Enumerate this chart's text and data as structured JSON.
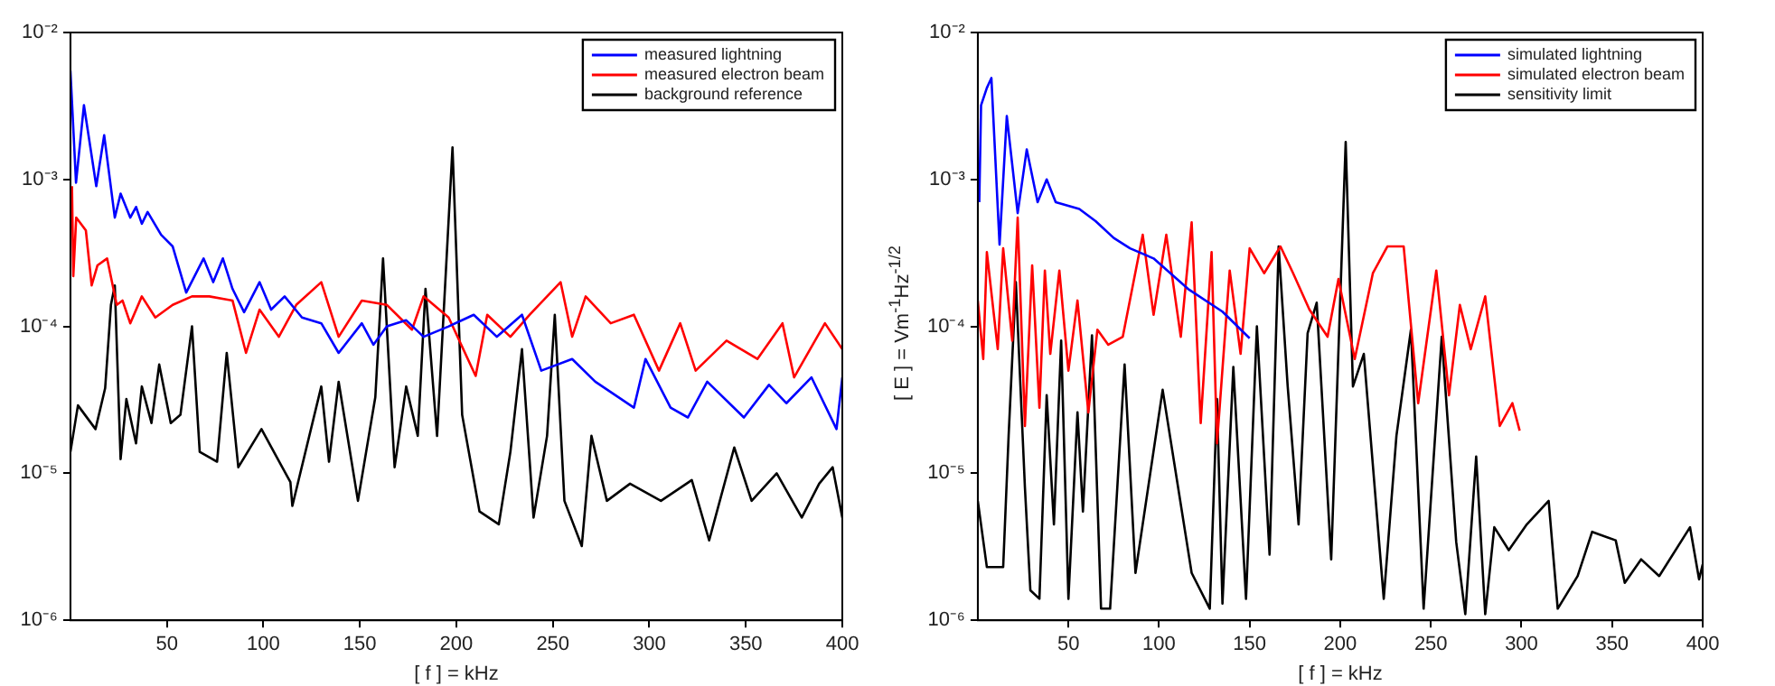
{
  "chart_data": [
    {
      "type": "line",
      "xlabel": "[ f ] = kHz",
      "xlim": [
        0,
        400
      ],
      "xticks": [
        50,
        100,
        150,
        200,
        250,
        300,
        350,
        400
      ],
      "ylim": [
        1e-06,
        0.01
      ],
      "yticks": [
        {
          "value": 1e-06,
          "label": "10⁻⁶"
        },
        {
          "value": 1e-05,
          "label": "10⁻⁵"
        },
        {
          "value": 0.0001,
          "label": "10⁻⁴"
        },
        {
          "value": 0.001,
          "label": "10⁻³"
        },
        {
          "value": 0.01,
          "label": "10⁻²"
        }
      ],
      "log": "y",
      "grid": false,
      "legend": "top right",
      "marker": "none",
      "series": [
        {
          "name": "measured lightning",
          "color": "#0000ff",
          "x": [
            0,
            2.9,
            7,
            13.4,
            17.5,
            23,
            26,
            31,
            34,
            37,
            40,
            47,
            53,
            60,
            69,
            74,
            79,
            84,
            90,
            98,
            104,
            111,
            120,
            130,
            139,
            151,
            157,
            164,
            174,
            183,
            196,
            209,
            221,
            234,
            244,
            260,
            272,
            292,
            298,
            311,
            320,
            330,
            349,
            362,
            371,
            384,
            397,
            400
          ],
          "values": [
            0.0055,
            0.00095,
            0.0032,
            0.0009,
            0.002,
            0.00055,
            0.0008,
            0.00055,
            0.00065,
            0.0005,
            0.0006,
            0.00042,
            0.00035,
            0.00017,
            0.00029,
            0.0002,
            0.00029,
            0.00018,
            0.000125,
            0.0002,
            0.00013,
            0.00016,
            0.000115,
            0.000105,
            6.6e-05,
            0.000105,
            7.5e-05,
            0.0001,
            0.00011,
            8.5e-05,
            0.0001,
            0.00012,
            8.5e-05,
            0.00012,
            5e-05,
            6e-05,
            4.2e-05,
            2.8e-05,
            6e-05,
            2.8e-05,
            2.4e-05,
            4.2e-05,
            2.4e-05,
            4e-05,
            3e-05,
            4.5e-05,
            2e-05,
            4.5e-05
          ]
        },
        {
          "name": "measured electron beam",
          "color": "#ff0000",
          "x": [
            0.8,
            1.5,
            3,
            8,
            11,
            14,
            19,
            24,
            27,
            31,
            37,
            44,
            53,
            63,
            72,
            84,
            91,
            98,
            108,
            117,
            130,
            139,
            151,
            164,
            177,
            183,
            196,
            210,
            216,
            228,
            238,
            254,
            260,
            267,
            280,
            292,
            305,
            316,
            324,
            340,
            356,
            369,
            375,
            391,
            400
          ],
          "values": [
            0.0009,
            0.00022,
            0.00055,
            0.00045,
            0.00019,
            0.00026,
            0.00029,
            0.00014,
            0.00015,
            0.000105,
            0.00016,
            0.000115,
            0.00014,
            0.00016,
            0.00016,
            0.00015,
            6.6e-05,
            0.00013,
            8.5e-05,
            0.00014,
            0.0002,
            8.5e-05,
            0.00015,
            0.00014,
            9.5e-05,
            0.00016,
            0.000115,
            4.6e-05,
            0.00012,
            8.5e-05,
            0.00012,
            0.0002,
            8.5e-05,
            0.00016,
            0.000105,
            0.00012,
            5e-05,
            0.000105,
            5e-05,
            8e-05,
            6e-05,
            0.000105,
            4.5e-05,
            0.000105,
            7e-05
          ]
        },
        {
          "name": "background reference",
          "color": "#000000",
          "x": [
            0,
            3.9,
            13,
            18,
            21,
            23,
            26,
            29,
            34,
            37,
            42,
            46,
            52,
            57,
            63,
            67,
            76,
            81,
            87,
            99,
            114,
            115,
            130,
            134,
            139,
            149,
            158,
            162,
            168,
            174,
            180,
            184,
            190,
            198,
            203,
            212,
            222,
            228,
            234,
            240,
            247,
            251,
            256,
            265,
            270,
            278,
            290,
            306,
            322,
            331,
            344,
            353,
            366,
            379,
            388,
            395,
            400
          ],
          "values": [
            1.4e-05,
            2.9e-05,
            2e-05,
            3.8e-05,
            0.00014,
            0.00019,
            1.25e-05,
            3.2e-05,
            1.6e-05,
            3.9e-05,
            2.2e-05,
            5.5e-05,
            2.2e-05,
            2.5e-05,
            0.0001,
            1.4e-05,
            1.2e-05,
            6.6e-05,
            1.1e-05,
            2e-05,
            8.7e-06,
            6e-06,
            3.9e-05,
            1.2e-05,
            4.2e-05,
            6.5e-06,
            3.3e-05,
            0.00029,
            1.1e-05,
            3.9e-05,
            1.8e-05,
            0.00018,
            1.8e-05,
            0.00165,
            2.5e-05,
            5.5e-06,
            4.5e-06,
            1.4e-05,
            7e-05,
            5e-06,
            1.8e-05,
            0.00012,
            6.5e-06,
            3.2e-06,
            1.8e-05,
            6.5e-06,
            8.5e-06,
            6.5e-06,
            9e-06,
            3.5e-06,
            1.5e-05,
            6.5e-06,
            1e-05,
            5e-06,
            8.5e-06,
            1.1e-05,
            5e-06
          ]
        }
      ]
    },
    {
      "type": "line",
      "xlabel": "[ f ] = kHz",
      "ylabel": "[ E ] = Vm$^{-1}$Hz$^{-1/2}$",
      "xlim": [
        0,
        400
      ],
      "xticks": [
        50,
        100,
        150,
        200,
        250,
        300,
        350,
        400
      ],
      "ylim": [
        1e-06,
        0.01
      ],
      "yticks": [
        {
          "value": 1e-06,
          "label": "10⁻⁶"
        },
        {
          "value": 1e-05,
          "label": "10⁻⁵"
        },
        {
          "value": 0.0001,
          "label": "10⁻⁴"
        },
        {
          "value": 0.001,
          "label": "10⁻³"
        },
        {
          "value": 0.01,
          "label": "10⁻²"
        }
      ],
      "log": "y",
      "grid": false,
      "legend": "top right",
      "marker": "none",
      "series": [
        {
          "name": "simulated lightning",
          "color": "#0000ff",
          "x": [
            0.8,
            1.8,
            5,
            7.5,
            12,
            16,
            22,
            27,
            33,
            38,
            43,
            56,
            65,
            75,
            84,
            97,
            116,
            135,
            150
          ],
          "values": [
            0.0007,
            0.0032,
            0.0042,
            0.0049,
            0.00036,
            0.0027,
            0.00059,
            0.0016,
            0.0007,
            0.001,
            0.0007,
            0.00063,
            0.00052,
            0.0004,
            0.00034,
            0.00029,
            0.00018,
            0.000126,
            8.3e-05
          ]
        },
        {
          "name": "simulated electron beam",
          "color": "#ff0000",
          "x": [
            0,
            3,
            5,
            11,
            14,
            19,
            22,
            26,
            30,
            34,
            37,
            40,
            45,
            50,
            55,
            61,
            66,
            72,
            80,
            91,
            97,
            104,
            112,
            118,
            123,
            129,
            132,
            139,
            145,
            150,
            158,
            167,
            174,
            183,
            193,
            199,
            208,
            218,
            226,
            235,
            243,
            253,
            260,
            266,
            272,
            280,
            288,
            295,
            299
          ],
          "values": [
            0.00015,
            6e-05,
            0.00032,
            7e-05,
            0.00034,
            8e-05,
            0.00055,
            2.1e-05,
            0.00026,
            2.8e-05,
            0.00024,
            6.5e-05,
            0.00024,
            5e-05,
            0.00015,
            2.6e-05,
            9.5e-05,
            7.5e-05,
            8.5e-05,
            0.00042,
            0.00012,
            0.00042,
            8.5e-05,
            0.00051,
            2.2e-05,
            0.00032,
            1.6e-05,
            0.00024,
            6.5e-05,
            0.00034,
            0.00023,
            0.00035,
            0.00023,
            0.00013,
            8.5e-05,
            0.00021,
            6e-05,
            0.00023,
            0.00035,
            0.00035,
            3e-05,
            0.00024,
            3.4e-05,
            0.00014,
            7e-05,
            0.00016,
            2.1e-05,
            3e-05,
            1.95e-05
          ]
        },
        {
          "name": "sensitivity limit",
          "color": "#000000",
          "x": [
            0,
            5,
            14,
            17,
            21,
            26,
            29,
            34,
            38,
            42,
            46,
            50,
            55,
            58,
            63,
            68,
            73,
            81,
            87,
            102,
            118,
            128,
            132,
            135,
            141,
            148,
            154,
            161,
            166,
            171,
            177,
            182,
            187,
            195,
            203,
            207,
            213,
            224,
            231,
            239,
            246,
            256,
            264,
            269,
            275,
            280,
            285,
            293,
            303,
            315,
            320,
            331,
            339,
            352,
            357,
            366,
            376,
            393,
            398,
            400
          ],
          "values": [
            6.5e-06,
            2.3e-06,
            2.3e-06,
            1.8e-05,
            0.0002,
            8e-06,
            1.6e-06,
            1.4e-06,
            3.4e-05,
            4.5e-06,
            8e-05,
            1.4e-06,
            2.6e-05,
            5.5e-06,
            8.7e-05,
            1.2e-06,
            1.2e-06,
            5.5e-05,
            2.1e-06,
            3.7e-05,
            2.1e-06,
            1.2e-06,
            3.2e-05,
            1.3e-06,
            5.3e-05,
            1.4e-06,
            0.0001,
            2.8e-06,
            0.00035,
            3.9e-05,
            4.5e-06,
            9e-05,
            0.000145,
            2.6e-06,
            0.0018,
            3.9e-05,
            6.5e-05,
            1.4e-06,
            1.8e-05,
            9.5e-05,
            1.2e-06,
            8.5e-05,
            3.4e-06,
            1.1e-06,
            1.3e-05,
            1.1e-06,
            4.3e-06,
            3e-06,
            4.5e-06,
            6.5e-06,
            1.2e-06,
            2e-06,
            4e-06,
            3.5e-06,
            1.8e-06,
            2.6e-06,
            2e-06,
            4.3e-06,
            1.9e-06,
            2.4e-06
          ]
        }
      ]
    }
  ]
}
